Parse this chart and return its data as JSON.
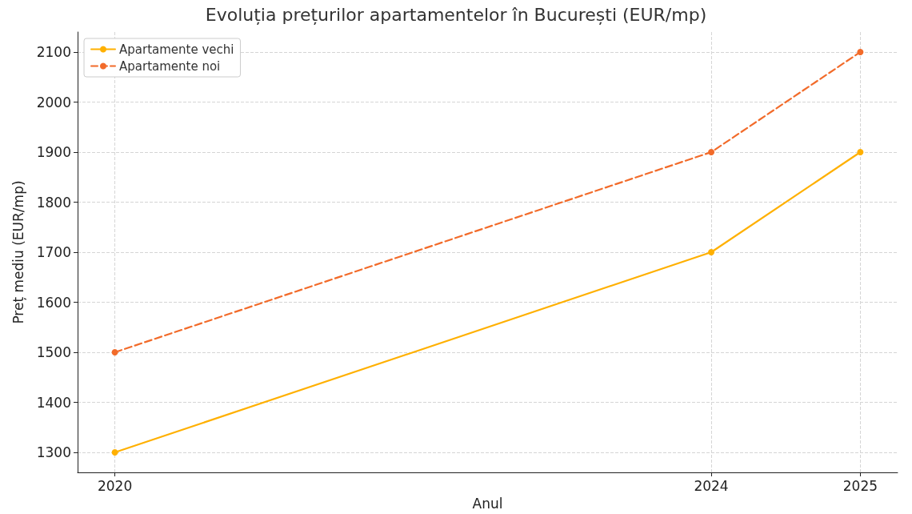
{
  "chart_data": {
    "type": "line",
    "title": "Evoluția prețurilor apartamentelor în București (EUR/mp)",
    "xlabel": "Anul",
    "ylabel": "Preț mediu (EUR/mp)",
    "x": [
      2020,
      2024,
      2025
    ],
    "series": [
      {
        "name": "Apartamente vechi",
        "color": "#ffb000",
        "values": [
          1300,
          1700,
          1900
        ],
        "line_style": "solid"
      },
      {
        "name": "Apartamente noi",
        "color": "#f26b2a",
        "values": [
          1500,
          1900,
          2100
        ],
        "line_style": "dashed"
      }
    ],
    "xlim": [
      2019.75,
      2025.25
    ],
    "xticks": [
      2020,
      2024,
      2025
    ],
    "ylim": [
      1260,
      2140
    ],
    "yticks": [
      1300,
      1400,
      1500,
      1600,
      1700,
      1800,
      1900,
      2000,
      2100
    ],
    "grid": true,
    "legend": "top left",
    "marker": "circle"
  }
}
